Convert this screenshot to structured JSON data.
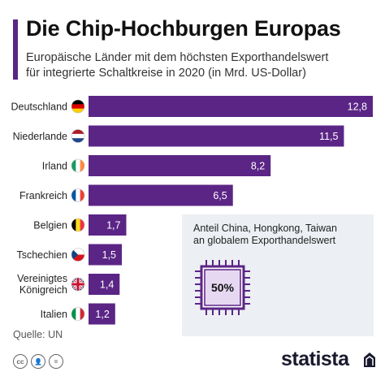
{
  "header": {
    "title": "Die Chip-Hochburgen Europas",
    "subtitle_line1": "Europäische Länder mit dem höchsten Exporthandelswert",
    "subtitle_line2": "für integrierte Schaltkreise in 2020 (in Mrd. US-Dollar)"
  },
  "chart_data": {
    "type": "bar",
    "orientation": "horizontal",
    "title": "Die Chip-Hochburgen Europas",
    "subtitle": "Europäische Länder mit dem höchsten Exporthandelswert für integrierte Schaltkreise in 2020 (in Mrd. US-Dollar)",
    "categories": [
      "Deutschland",
      "Niederlande",
      "Irland",
      "Frankreich",
      "Belgien",
      "Tschechien",
      "Vereinigtes Königreich",
      "Italien"
    ],
    "category_lines": [
      [
        "Deutschland"
      ],
      [
        "Niederlande"
      ],
      [
        "Irland"
      ],
      [
        "Frankreich"
      ],
      [
        "Belgien"
      ],
      [
        "Tschechien"
      ],
      [
        "Vereinigtes",
        "Königreich"
      ],
      [
        "Italien"
      ]
    ],
    "values": [
      12.8,
      11.5,
      8.2,
      6.5,
      1.7,
      1.5,
      1.4,
      1.2
    ],
    "value_labels": [
      "12,8",
      "11,5",
      "8,2",
      "6,5",
      "1,7",
      "1,5",
      "1,4",
      "1,2"
    ],
    "xlim": [
      0,
      12.8
    ],
    "bar_color": "#5b2586",
    "flags": [
      "de",
      "nl",
      "ie",
      "fr",
      "be",
      "cz",
      "gb",
      "it"
    ],
    "grid": false
  },
  "infobox": {
    "line1": "Anteil China, Hongkong, Taiwan",
    "line2": "an globalem Exporthandelswert",
    "value": "50%",
    "icon": "chip-icon"
  },
  "footer": {
    "source": "Quelle: UN",
    "license_icons": [
      "cc-icon",
      "by-icon",
      "nd-icon"
    ],
    "brand": "statista"
  },
  "colors": {
    "accent": "#5b2586",
    "infobox_bg": "#eceff3"
  }
}
